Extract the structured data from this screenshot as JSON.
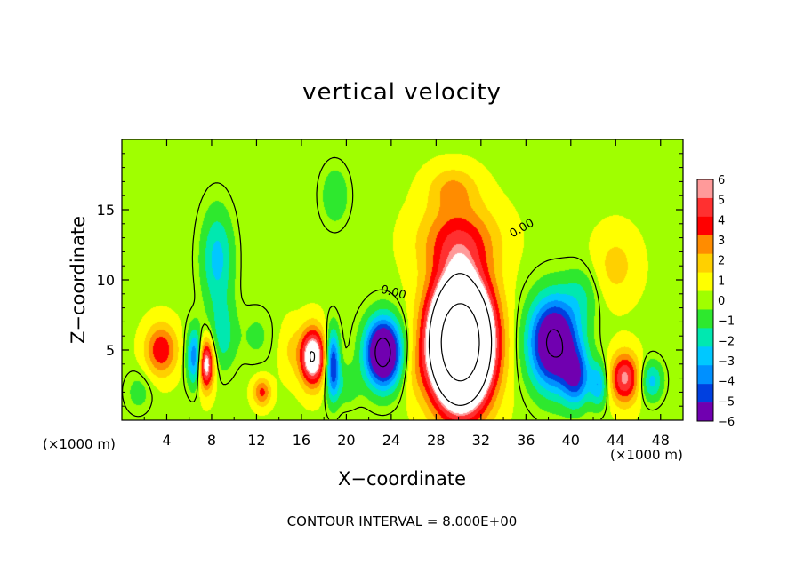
{
  "chart_data": {
    "type": "heatmap",
    "title": "vertical velocity",
    "xlabel": "X−coordinate",
    "ylabel": "Z−coordinate",
    "x_units": "(×1000 m)",
    "z_units": "(×1000 m)",
    "xlim": [
      0,
      50
    ],
    "ylim": [
      0,
      20
    ],
    "x_ticks": [
      4,
      8,
      12,
      16,
      20,
      24,
      28,
      32,
      36,
      40,
      44,
      48
    ],
    "x_tick_labels": [
      "4",
      "8",
      "12",
      "16",
      "20",
      "24",
      "28",
      "32",
      "36",
      "40",
      "44",
      "48"
    ],
    "y_ticks": [
      5,
      10,
      15
    ],
    "y_tick_labels": [
      "5",
      "10",
      "15"
    ],
    "footnote": "CONTOUR INTERVAL = 8.000E+00",
    "zero_contour_label": "0.00",
    "colorbar": {
      "levels": [
        6,
        5,
        4,
        3,
        2,
        1,
        0,
        -1,
        -2,
        -3,
        -4,
        -5,
        -6
      ],
      "labels": [
        "6",
        "5",
        "4",
        "3",
        "2",
        "1",
        "0",
        "−1",
        "−2",
        "−3",
        "−4",
        "−5",
        "−6"
      ],
      "colors": [
        "#ff9a9a",
        "#ff3030",
        "#ff0000",
        "#ff8c00",
        "#ffd000",
        "#ffff00",
        "#a0ff00",
        "#2ee82e",
        "#00e8b0",
        "#00c8ff",
        "#0090ff",
        "#0040e0",
        "#7000b0"
      ],
      "out_of_range_high_color": "#ffffff"
    },
    "background_value": 0.3,
    "features": [
      {
        "x": 30.2,
        "z": 5.5,
        "peak": 24,
        "sx": 2.6,
        "sz": 4.2
      },
      {
        "x": 30.0,
        "z": 12.8,
        "peak": 3.8,
        "sx": 3.4,
        "sz": 2.6
      },
      {
        "x": 29.5,
        "z": 16.5,
        "peak": 2.2,
        "sx": 2.2,
        "sz": 1.6
      },
      {
        "x": 23.3,
        "z": 4.8,
        "peak": -10,
        "sx": 1.6,
        "sz": 2.4
      },
      {
        "x": 26.0,
        "z": 3.5,
        "peak": 0.8,
        "sx": 1.2,
        "sz": 2.0
      },
      {
        "x": 17.0,
        "z": 4.5,
        "peak": 8,
        "sx": 1.1,
        "sz": 2.0
      },
      {
        "x": 18.8,
        "z": 4.0,
        "peak": -6,
        "sx": 0.6,
        "sz": 2.4
      },
      {
        "x": 15.0,
        "z": 5.0,
        "peak": 1.2,
        "sx": 1.0,
        "sz": 2.0
      },
      {
        "x": 38.5,
        "z": 5.5,
        "peak": -9,
        "sx": 2.2,
        "sz": 3.2
      },
      {
        "x": 40.5,
        "z": 3.0,
        "peak": -4.5,
        "sx": 1.2,
        "sz": 2.0
      },
      {
        "x": 44.8,
        "z": 3.0,
        "peak": 5.5,
        "sx": 1.3,
        "sz": 1.8
      },
      {
        "x": 42.5,
        "z": 2.5,
        "peak": -3.5,
        "sx": 0.8,
        "sz": 1.6
      },
      {
        "x": 47.2,
        "z": 2.8,
        "peak": -3.2,
        "sx": 1.0,
        "sz": 1.4
      },
      {
        "x": 3.5,
        "z": 5.0,
        "peak": 4.2,
        "sx": 1.4,
        "sz": 1.8
      },
      {
        "x": 6.5,
        "z": 4.5,
        "peak": -5,
        "sx": 0.7,
        "sz": 2.0
      },
      {
        "x": 7.5,
        "z": 4.0,
        "peak": 7,
        "sx": 0.7,
        "sz": 1.8
      },
      {
        "x": 8.5,
        "z": 11.5,
        "peak": -3.2,
        "sx": 1.4,
        "sz": 3.5
      },
      {
        "x": 9.0,
        "z": 6.0,
        "peak": -2.2,
        "sx": 1.2,
        "sz": 2.5
      },
      {
        "x": 12.5,
        "z": 2.0,
        "peak": 3.5,
        "sx": 0.8,
        "sz": 1.0
      },
      {
        "x": 19.0,
        "z": 16.0,
        "peak": -1.8,
        "sx": 1.2,
        "sz": 2.0
      },
      {
        "x": 20.0,
        "z": 2.5,
        "peak": -1.5,
        "sx": 1.2,
        "sz": 1.5
      },
      {
        "x": 1.5,
        "z": 2.0,
        "peak": -1.2,
        "sx": 1.2,
        "sz": 1.5
      },
      {
        "x": 44.0,
        "z": 11.0,
        "peak": 1.6,
        "sx": 2.0,
        "sz": 2.5
      },
      {
        "x": 41.0,
        "z": 9.0,
        "peak": -1.5,
        "sx": 1.5,
        "sz": 2.0
      },
      {
        "x": 12.0,
        "z": 6.0,
        "peak": -1.0,
        "sx": 1.5,
        "sz": 2.0
      }
    ]
  }
}
